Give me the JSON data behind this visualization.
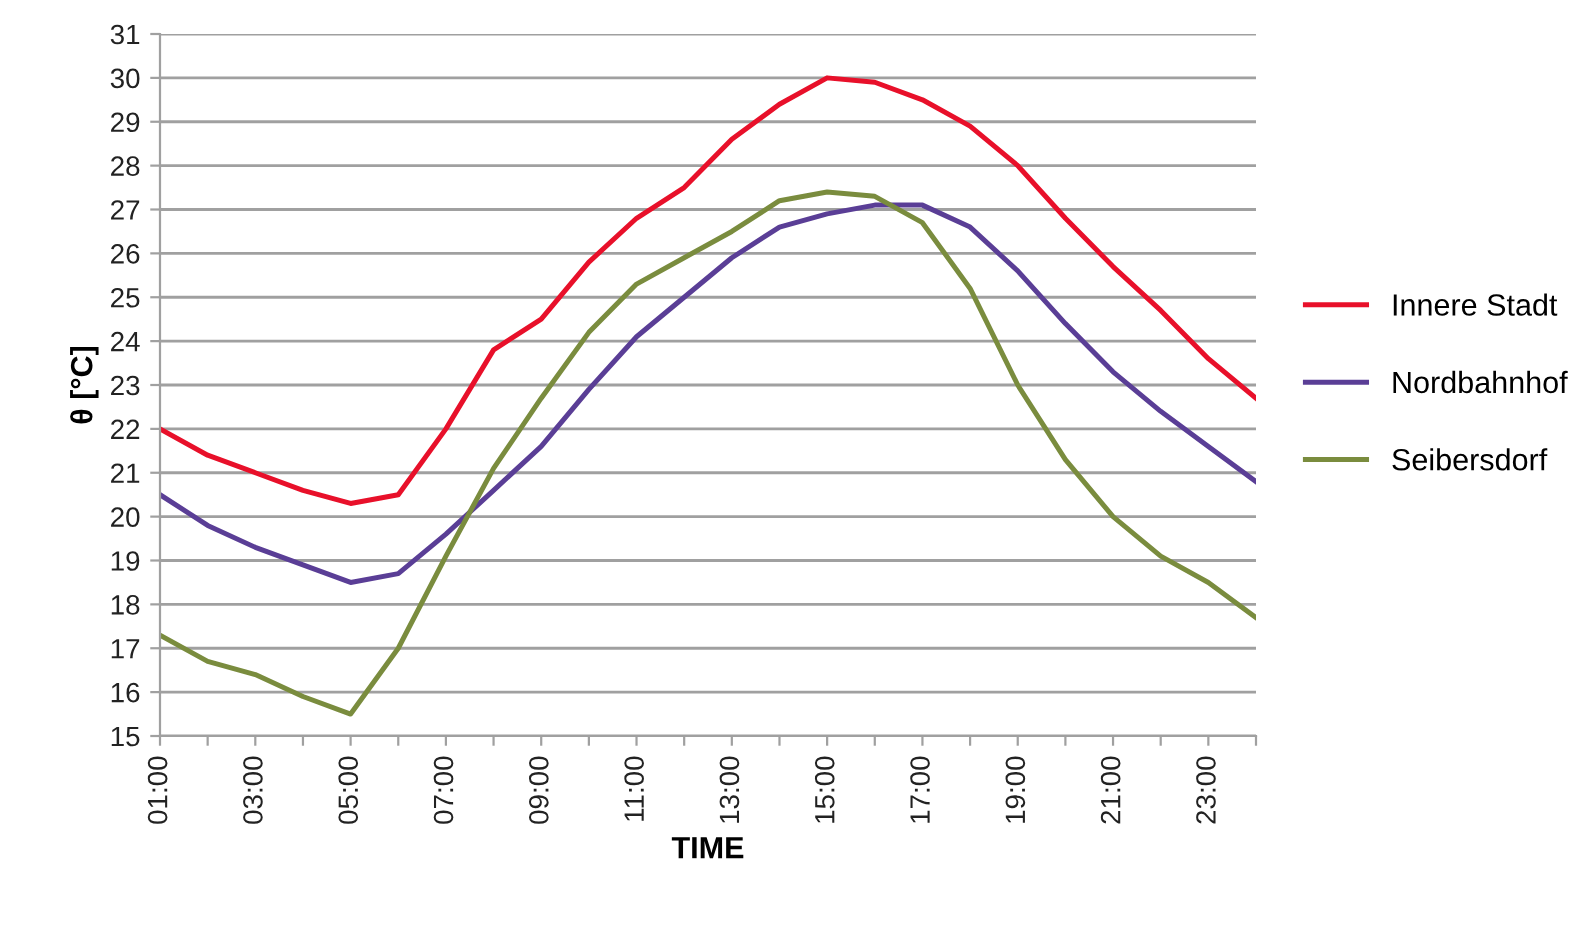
{
  "chart_data": {
    "type": "line",
    "xlabel": "TIME",
    "ylabel": "θ [°C]",
    "categories": [
      "01:00",
      null,
      "03:00",
      null,
      "05:00",
      null,
      "07:00",
      null,
      "09:00",
      null,
      "11:00",
      null,
      "13:00",
      null,
      "15:00",
      null,
      "17:00",
      null,
      "19:00",
      null,
      "21:00",
      null,
      "23:00",
      null
    ],
    "series": [
      {
        "name": "Innere Stadt",
        "color": "#e8102a",
        "values": [
          22.0,
          21.4,
          21.0,
          20.6,
          20.3,
          20.5,
          22.0,
          23.8,
          24.5,
          25.8,
          26.8,
          27.5,
          28.6,
          29.4,
          30.0,
          29.9,
          29.5,
          28.9,
          28.0,
          26.8,
          25.7,
          24.7,
          23.6,
          22.7
        ]
      },
      {
        "name": "Nordbahnhof",
        "color": "#5a3e96",
        "values": [
          20.5,
          19.8,
          19.3,
          18.9,
          18.5,
          18.7,
          19.6,
          20.6,
          21.6,
          22.9,
          24.1,
          25.0,
          25.9,
          26.6,
          26.9,
          27.1,
          27.1,
          26.6,
          25.6,
          24.4,
          23.3,
          22.4,
          21.6,
          20.8
        ]
      },
      {
        "name": "Seibersdorf",
        "color": "#7a8c3e",
        "values": [
          17.3,
          16.7,
          16.4,
          15.9,
          15.5,
          17.0,
          19.1,
          21.1,
          22.7,
          24.2,
          25.3,
          25.9,
          26.5,
          27.2,
          27.4,
          27.3,
          26.7,
          25.2,
          23.0,
          21.3,
          20.0,
          19.1,
          18.5,
          17.7
        ]
      }
    ],
    "ylim": [
      15,
      31
    ],
    "yticks": [
      15,
      16,
      17,
      18,
      19,
      20,
      21,
      22,
      23,
      24,
      25,
      26,
      27,
      28,
      29,
      30,
      31
    ],
    "grid": "y",
    "legend": "right",
    "marker": "none",
    "line_style": "solid"
  }
}
